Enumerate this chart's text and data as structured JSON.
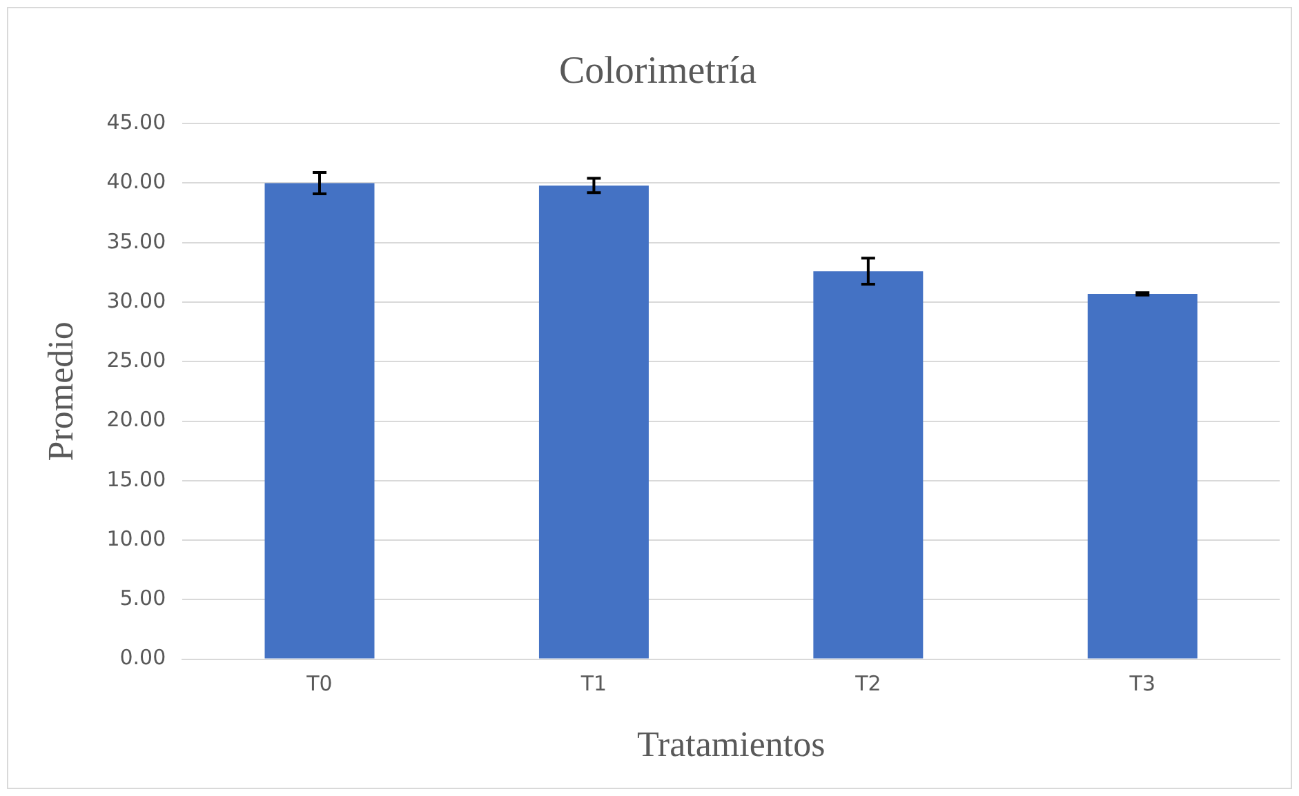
{
  "chart_data": {
    "type": "bar",
    "title": "Colorimetría",
    "xlabel": "Tratamientos",
    "ylabel": "Promedio",
    "categories": [
      "T0",
      "T1",
      "T2",
      "T3"
    ],
    "values": [
      40.0,
      39.8,
      32.6,
      30.7
    ],
    "errors": [
      0.9,
      0.6,
      1.1,
      0.1
    ],
    "color": "#4472c4",
    "ylim": [
      0,
      45
    ],
    "yticks": [
      {
        "value": 0,
        "label": "0.00"
      },
      {
        "value": 5,
        "label": "5.00"
      },
      {
        "value": 10,
        "label": "10.00"
      },
      {
        "value": 15,
        "label": "15.00"
      },
      {
        "value": 20,
        "label": "20.00"
      },
      {
        "value": 25,
        "label": "25.00"
      },
      {
        "value": 30,
        "label": "30.00"
      },
      {
        "value": 35,
        "label": "35.00"
      },
      {
        "value": 40,
        "label": "40.00"
      },
      {
        "value": 45,
        "label": "45.00"
      }
    ],
    "grid": "y",
    "legend": false
  }
}
